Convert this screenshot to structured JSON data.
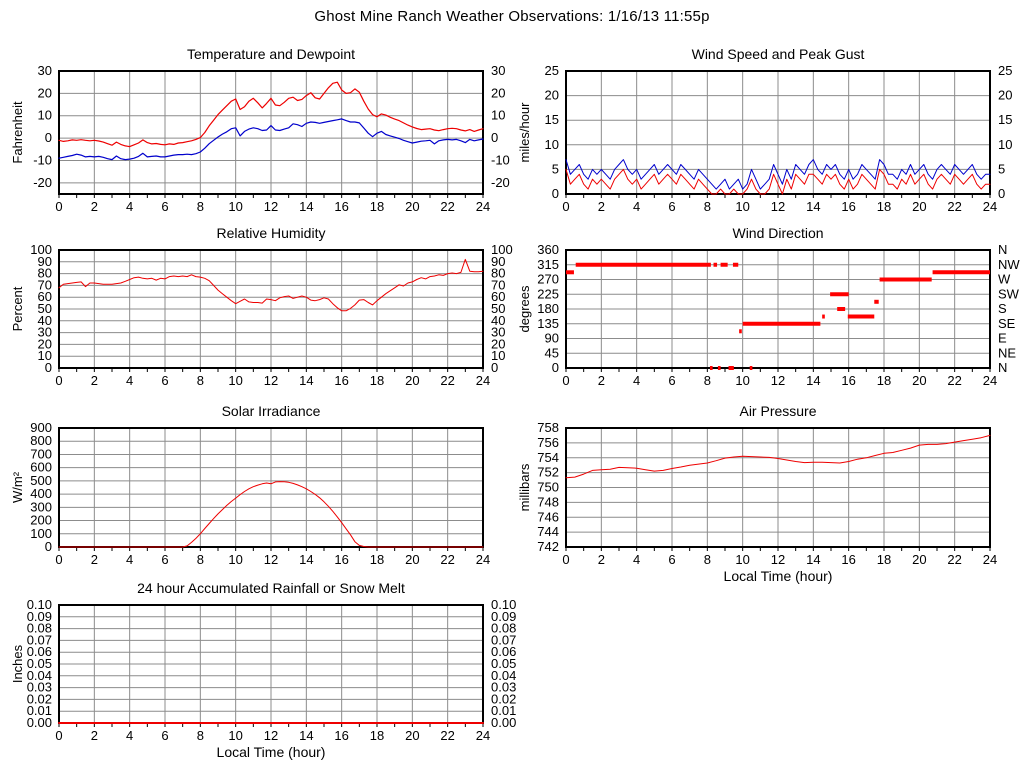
{
  "page_title": "Ghost Mine Ranch Weather Observations: 1/16/13 11:55p",
  "colors": {
    "red": "#ee0000",
    "blue": "#0000cc",
    "segment_red": "#ff0000",
    "grid": "#8c8c8c",
    "border": "#000000",
    "text": "#000000",
    "background": "#ffffff"
  },
  "x_axis": {
    "label": "Local Time (hour)",
    "ticks": [
      0,
      2,
      4,
      6,
      8,
      10,
      12,
      14,
      16,
      18,
      20,
      22,
      24
    ],
    "range": [
      0,
      24
    ]
  },
  "chart_data": [
    {
      "id": "temperature_dewpoint",
      "type": "line",
      "title": "Temperature and Dewpoint",
      "ylabel": "Fahrenheit",
      "ylim": [
        -25,
        30
      ],
      "yticks": [
        -20,
        -10,
        0,
        10,
        20,
        30
      ],
      "ytick_labels": [
        "-20",
        "-10",
        "0",
        "10",
        "20",
        "30"
      ],
      "ytick_labels_right": true,
      "x_step": 0.25,
      "series": [
        {
          "name": "temperature",
          "color": "#ee0000",
          "width": 1.2,
          "values": [
            -1,
            -1.5,
            -1.2,
            -0.8,
            -1,
            -0.7,
            -1,
            -1.2,
            -1,
            -1.3,
            -1.8,
            -2.5,
            -3.2,
            -1.8,
            -2.8,
            -3.5,
            -3.8,
            -3,
            -2.2,
            -0.8,
            -2,
            -2.6,
            -2.4,
            -2.8,
            -3,
            -2.6,
            -2.8,
            -2.2,
            -2,
            -1.6,
            -1.2,
            -0.6,
            0.2,
            2.5,
            5.5,
            8,
            10.5,
            12.5,
            14.5,
            16.5,
            17.5,
            12.8,
            14,
            16.5,
            17.8,
            15.8,
            13.5,
            15.5,
            17.8,
            14.8,
            14.5,
            16,
            17.8,
            18.3,
            16.8,
            17.3,
            19,
            20.3,
            18,
            17.5,
            20,
            22.5,
            24.5,
            25,
            21.5,
            20,
            20.3,
            22,
            20.5,
            16.5,
            13,
            10.5,
            9.5,
            10.8,
            10.3,
            9.3,
            8.5,
            7.8,
            6.8,
            5.8,
            5,
            4.3,
            3.8,
            4,
            4.2,
            3.6,
            3.3,
            3.8,
            4.2,
            4.4,
            4.2,
            3.6,
            3.2,
            3.8,
            3,
            3.6,
            4.2
          ]
        },
        {
          "name": "dewpoint",
          "color": "#0000cc",
          "width": 1.2,
          "values": [
            -9,
            -8.6,
            -8.2,
            -7.8,
            -7.2,
            -7.6,
            -8.4,
            -8.2,
            -8.4,
            -8.2,
            -8.6,
            -9.2,
            -9.6,
            -8,
            -9.2,
            -9.6,
            -9.4,
            -9,
            -8.2,
            -6.8,
            -8.4,
            -8.2,
            -8,
            -8.4,
            -8.4,
            -8,
            -7.6,
            -7.4,
            -7.4,
            -7.2,
            -7.4,
            -7,
            -6.2,
            -4.5,
            -2.5,
            -1,
            0.5,
            1.8,
            2.8,
            4.2,
            4.6,
            1,
            3,
            4,
            4.6,
            4.2,
            3.4,
            3.6,
            5.6,
            3.6,
            3.4,
            4,
            4.6,
            6.4,
            6,
            5.2,
            6.6,
            7.2,
            7,
            6.6,
            7,
            7.4,
            7.8,
            8.2,
            8.6,
            7.8,
            7.2,
            7.2,
            6.8,
            4.5,
            2.2,
            0.6,
            2.2,
            3,
            1.6,
            1,
            0.4,
            -0.2,
            -1,
            -1.6,
            -2.2,
            -1.8,
            -1.4,
            -1.2,
            -1,
            -2.6,
            -1.2,
            -0.8,
            -0.6,
            -0.8,
            -0.6,
            -1.2,
            -2,
            -0.6,
            -1.2,
            -0.8,
            -0.4
          ]
        }
      ]
    },
    {
      "id": "wind_speed_gust",
      "type": "line",
      "title": "Wind Speed and Peak Gust",
      "ylabel": "miles/hour",
      "ylim": [
        0,
        25
      ],
      "yticks": [
        0,
        5,
        10,
        15,
        20,
        25
      ],
      "ytick_labels": [
        "0",
        "5",
        "10",
        "15",
        "20",
        "25"
      ],
      "ytick_labels_right": true,
      "x_step": 0.25,
      "series": [
        {
          "name": "wind_speed",
          "color": "#ee0000",
          "width": 1,
          "values": [
            5,
            2,
            3,
            4,
            2,
            1,
            3,
            2,
            3,
            2,
            1,
            3,
            4,
            5,
            3,
            2,
            3,
            1,
            2,
            3,
            4,
            2,
            3,
            4,
            3,
            2,
            4,
            3,
            2,
            1,
            3,
            2,
            1,
            0,
            0,
            1,
            0,
            0,
            1,
            0,
            0,
            1,
            3,
            1,
            0,
            0,
            1,
            4,
            2,
            0,
            3,
            1,
            4,
            3,
            2,
            4,
            4,
            3,
            2,
            4,
            3,
            4,
            2,
            1,
            3,
            1,
            2,
            4,
            3,
            2,
            1,
            5,
            4,
            2,
            2,
            1,
            3,
            2,
            4,
            2,
            3,
            4,
            2,
            1,
            3,
            4,
            3,
            2,
            4,
            3,
            2,
            3,
            4,
            2,
            1,
            2,
            2
          ]
        },
        {
          "name": "peak_gust",
          "color": "#0000cc",
          "width": 1,
          "values": [
            7,
            4,
            5,
            6,
            4,
            3,
            5,
            4,
            5,
            4,
            3,
            5,
            6,
            7,
            5,
            4,
            5,
            3,
            4,
            5,
            6,
            4,
            5,
            6,
            5,
            4,
            6,
            5,
            4,
            3,
            5,
            4,
            3,
            2,
            1,
            2,
            3,
            1,
            2,
            3,
            1,
            2,
            5,
            3,
            1,
            2,
            3,
            6,
            4,
            2,
            5,
            3,
            6,
            5,
            4,
            6,
            7,
            5,
            4,
            6,
            5,
            6,
            4,
            3,
            5,
            3,
            4,
            6,
            5,
            4,
            3,
            7,
            6,
            4,
            4,
            3,
            5,
            4,
            6,
            4,
            5,
            6,
            4,
            3,
            5,
            6,
            5,
            4,
            6,
            5,
            4,
            5,
            6,
            4,
            3,
            4,
            4
          ]
        }
      ]
    },
    {
      "id": "relative_humidity",
      "type": "line",
      "title": "Relative Humidity",
      "ylabel": "Percent",
      "ylim": [
        0,
        100
      ],
      "yticks": [
        0,
        10,
        20,
        30,
        40,
        50,
        60,
        70,
        80,
        90,
        100
      ],
      "ytick_labels": [
        "0",
        "10",
        "20",
        "30",
        "40",
        "50",
        "60",
        "70",
        "80",
        "90",
        "100"
      ],
      "ytick_labels_right": true,
      "x_step": 0.25,
      "series": [
        {
          "name": "humidity",
          "color": "#ee0000",
          "width": 1,
          "values": [
            68,
            71,
            71.5,
            72,
            72.5,
            73,
            69,
            72,
            72,
            71.5,
            71,
            71,
            71,
            71.5,
            72,
            73.5,
            75,
            76.5,
            77,
            76,
            75.5,
            76,
            74.5,
            76,
            75.5,
            77.5,
            78,
            77.5,
            78,
            77.5,
            79,
            77.5,
            77,
            76,
            74,
            70,
            66,
            63,
            60,
            57,
            54.5,
            56.5,
            58.5,
            56,
            55.5,
            55.5,
            55,
            58.5,
            58,
            57,
            59.5,
            60.5,
            61,
            59,
            60,
            61,
            60,
            57.5,
            57,
            58,
            59.5,
            58.5,
            54.5,
            51,
            48.5,
            48.5,
            50.5,
            53.5,
            57.5,
            58,
            55.5,
            53.5,
            57,
            60,
            63,
            65.5,
            68,
            70.5,
            69.5,
            72,
            73,
            75,
            76.5,
            75.5,
            77.5,
            78,
            79,
            78.5,
            80,
            80.5,
            80,
            81,
            92,
            82,
            81.5,
            81.5,
            82
          ]
        }
      ]
    },
    {
      "id": "wind_direction",
      "type": "segments",
      "title": "Wind Direction",
      "ylabel": "degrees",
      "ylim": [
        0,
        360
      ],
      "yticks": [
        0,
        45,
        90,
        135,
        180,
        225,
        270,
        315,
        360
      ],
      "ytick_labels": [
        "0",
        "45",
        "90",
        "135",
        "180",
        "225",
        "270",
        "315",
        "360"
      ],
      "right_labels": [
        "N",
        "NE",
        "E",
        "SE",
        "S",
        "SW",
        "W",
        "NW",
        "N"
      ],
      "ytick_labels_right": true,
      "segment_color": "#ff0000",
      "segments": [
        {
          "deg": 292,
          "from": 0,
          "to": 0.45
        },
        {
          "deg": 315,
          "from": 0.55,
          "to": 8.2
        },
        {
          "deg": 315,
          "from": 8.35,
          "to": 8.55
        },
        {
          "deg": 315,
          "from": 8.75,
          "to": 9.15
        },
        {
          "deg": 315,
          "from": 9.45,
          "to": 9.75
        },
        {
          "deg": 0,
          "from": 8.15,
          "to": 8.3
        },
        {
          "deg": 0,
          "from": 8.6,
          "to": 8.75
        },
        {
          "deg": 0,
          "from": 9.2,
          "to": 9.5
        },
        {
          "deg": 0,
          "from": 10.4,
          "to": 10.55
        },
        {
          "deg": 112,
          "from": 9.8,
          "to": 9.95
        },
        {
          "deg": 135,
          "from": 10.0,
          "to": 14.4
        },
        {
          "deg": 157,
          "from": 14.5,
          "to": 14.65
        },
        {
          "deg": 225,
          "from": 14.95,
          "to": 16.0
        },
        {
          "deg": 180,
          "from": 15.35,
          "to": 15.8
        },
        {
          "deg": 157,
          "from": 15.95,
          "to": 17.45
        },
        {
          "deg": 202,
          "from": 17.45,
          "to": 17.7
        },
        {
          "deg": 270,
          "from": 17.75,
          "to": 20.7
        },
        {
          "deg": 292,
          "from": 20.75,
          "to": 24
        }
      ]
    },
    {
      "id": "solar_irradiance",
      "type": "line",
      "title": "Solar Irradiance",
      "ylabel": "W/m²",
      "ylim": [
        0,
        900
      ],
      "yticks": [
        0,
        100,
        200,
        300,
        400,
        500,
        600,
        700,
        800,
        900
      ],
      "ytick_labels": [
        "0",
        "100",
        "200",
        "300",
        "400",
        "500",
        "600",
        "700",
        "800",
        "900"
      ],
      "ytick_labels_right": false,
      "x_step": 0.25,
      "series": [
        {
          "name": "solar",
          "color": "#ee0000",
          "width": 1,
          "values": [
            0,
            0,
            0,
            0,
            0,
            0,
            0,
            0,
            0,
            0,
            0,
            0,
            0,
            0,
            0,
            0,
            0,
            0,
            0,
            0,
            0,
            0,
            0,
            0,
            0,
            0,
            0,
            0,
            0,
            8,
            35,
            65,
            100,
            140,
            178,
            215,
            250,
            283,
            315,
            344,
            370,
            396,
            420,
            440,
            456,
            468,
            478,
            484,
            478,
            492,
            495,
            493,
            489,
            481,
            470,
            456,
            440,
            420,
            398,
            372,
            342,
            308,
            270,
            228,
            184,
            138,
            92,
            40,
            12,
            4,
            0,
            0,
            0,
            0,
            0,
            0,
            0,
            0,
            0,
            0,
            0,
            0,
            0,
            0,
            0,
            0,
            0,
            0,
            0,
            0,
            0,
            0,
            0,
            0,
            0,
            0,
            0
          ]
        }
      ]
    },
    {
      "id": "air_pressure",
      "type": "line",
      "title": "Air Pressure",
      "ylabel": "millibars",
      "show_xlabel": true,
      "ylim": [
        742,
        758
      ],
      "yticks": [
        742,
        744,
        746,
        748,
        750,
        752,
        754,
        756,
        758
      ],
      "ytick_labels": [
        "742",
        "744",
        "746",
        "748",
        "750",
        "752",
        "754",
        "756",
        "758"
      ],
      "ytick_labels_right": false,
      "x_step": 0.5,
      "series": [
        {
          "name": "pressure",
          "color": "#ee0000",
          "width": 1,
          "values": [
            751.3,
            751.4,
            751.8,
            752.3,
            752.4,
            752.45,
            752.7,
            752.65,
            752.6,
            752.4,
            752.2,
            752.3,
            752.55,
            752.75,
            753.0,
            753.15,
            753.3,
            753.6,
            753.95,
            754.1,
            754.2,
            754.15,
            754.1,
            754.05,
            753.9,
            753.7,
            753.5,
            753.35,
            753.4,
            753.4,
            753.35,
            753.3,
            753.5,
            753.8,
            754.0,
            754.3,
            754.6,
            754.7,
            755.0,
            755.3,
            755.7,
            755.8,
            755.8,
            755.9,
            756.1,
            756.3,
            756.5,
            756.7,
            757.0
          ]
        }
      ]
    },
    {
      "id": "rainfall",
      "type": "line",
      "title": "24 hour Accumulated Rainfall or Snow Melt",
      "ylabel": "Inches",
      "show_xlabel": true,
      "ylim": [
        0,
        0.1
      ],
      "yticks": [
        0,
        0.01,
        0.02,
        0.03,
        0.04,
        0.05,
        0.06,
        0.07,
        0.08,
        0.09,
        0.1
      ],
      "ytick_labels": [
        "0.00",
        "0.01",
        "0.02",
        "0.03",
        "0.04",
        "0.05",
        "0.06",
        "0.07",
        "0.08",
        "0.09",
        "0.10"
      ],
      "ytick_labels_right": true,
      "x_step": 12,
      "series": [
        {
          "name": "rainfall",
          "color": "#ee0000",
          "width": 2,
          "values": [
            0,
            0,
            0
          ]
        }
      ]
    }
  ]
}
